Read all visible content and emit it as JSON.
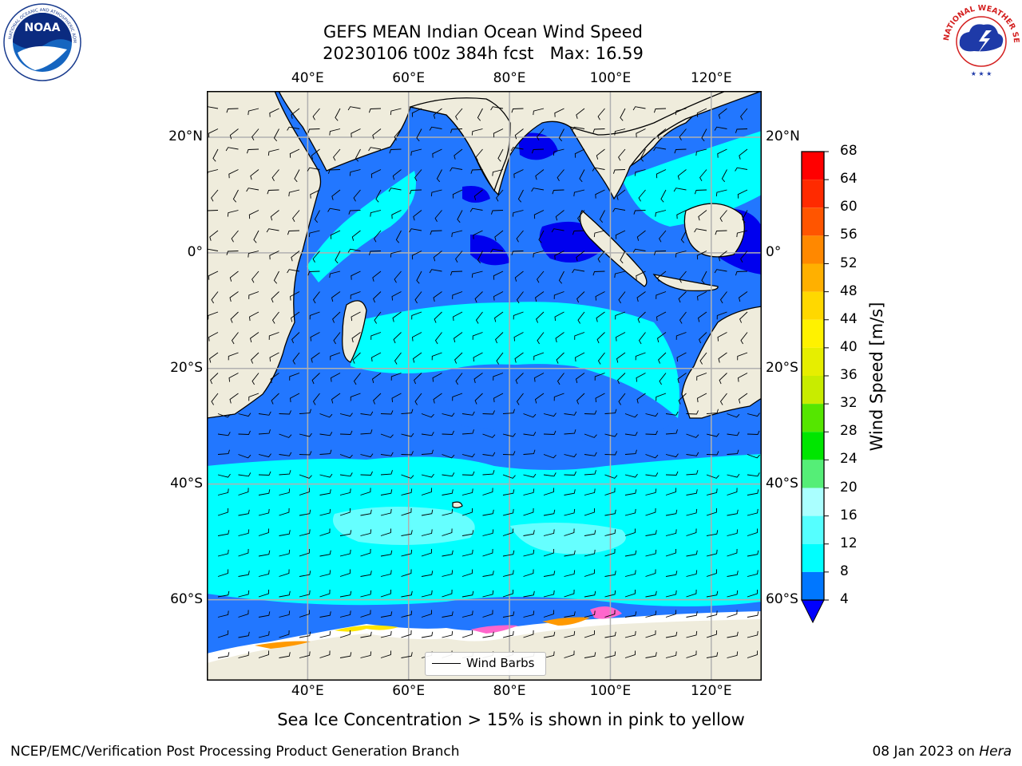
{
  "title": {
    "line1": "GEFS MEAN Indian Ocean Wind Speed",
    "line2": "20230106 t00z 384h fcst   Max: 16.59"
  },
  "map": {
    "lon_range": [
      20,
      130
    ],
    "lat_range": [
      -74,
      28
    ],
    "top_lon_labels": [
      "40°E",
      "60°E",
      "80°E",
      "100°E",
      "120°E"
    ],
    "bottom_lon_labels": [
      "40°E",
      "60°E",
      "80°E",
      "100°E",
      "120°E"
    ],
    "left_lat_labels": [
      "20°N",
      "0°",
      "20°S",
      "40°S",
      "60°S"
    ],
    "right_lat_labels": [
      "20°N",
      "0°",
      "20°S",
      "40°S",
      "60°S"
    ],
    "lon_ticks": [
      40,
      60,
      80,
      100,
      120
    ],
    "lat_ticks": [
      20,
      0,
      -20,
      -40,
      -60
    ],
    "land_color": "#efecdc",
    "grid_color": "#b0b0b0",
    "sea_ice_colors": [
      "#ff66cc",
      "#ff9900",
      "#ffe600"
    ]
  },
  "legend": {
    "label": "Wind Barbs"
  },
  "colorbar": {
    "title": "Wind Speed [m/s]",
    "ticks": [
      "68",
      "64",
      "60",
      "56",
      "52",
      "48",
      "44",
      "40",
      "36",
      "32",
      "28",
      "24",
      "20",
      "16",
      "12",
      "8",
      "4"
    ],
    "bands": [
      {
        "from": 64,
        "to": 68,
        "color": "#ff0000"
      },
      {
        "from": 60,
        "to": 64,
        "color": "#ff2a00"
      },
      {
        "from": 56,
        "to": 60,
        "color": "#ff5500"
      },
      {
        "from": 52,
        "to": 56,
        "color": "#ff8800"
      },
      {
        "from": 48,
        "to": 52,
        "color": "#ffb000"
      },
      {
        "from": 44,
        "to": 48,
        "color": "#ffd800"
      },
      {
        "from": 40,
        "to": 44,
        "color": "#fff200"
      },
      {
        "from": 36,
        "to": 40,
        "color": "#e6ee00"
      },
      {
        "from": 32,
        "to": 36,
        "color": "#c8ec00"
      },
      {
        "from": 28,
        "to": 32,
        "color": "#55e600"
      },
      {
        "from": 24,
        "to": 28,
        "color": "#00e600"
      },
      {
        "from": 20,
        "to": 24,
        "color": "#55ee77"
      },
      {
        "from": 16,
        "to": 20,
        "color": "#aaffff"
      },
      {
        "from": 12,
        "to": 16,
        "color": "#55ffff"
      },
      {
        "from": 8,
        "to": 12,
        "color": "#00ffff"
      },
      {
        "from": 4,
        "to": 8,
        "color": "#0077ff"
      }
    ],
    "extend_below_color": "#0000ff"
  },
  "wind_colors": {
    "4-8": "#2277ff",
    "8-12": "#00ffff",
    "12-16": "#66ffff",
    "below-4": "#0000ee"
  },
  "note": "Sea Ice Concentration > 15% is shown in pink to yellow",
  "footer": {
    "left": "NCEP/EMC/Verification Post Processing Product Generation Branch",
    "right_prefix": "08 Jan 2023 on ",
    "right_host": "Hera"
  }
}
